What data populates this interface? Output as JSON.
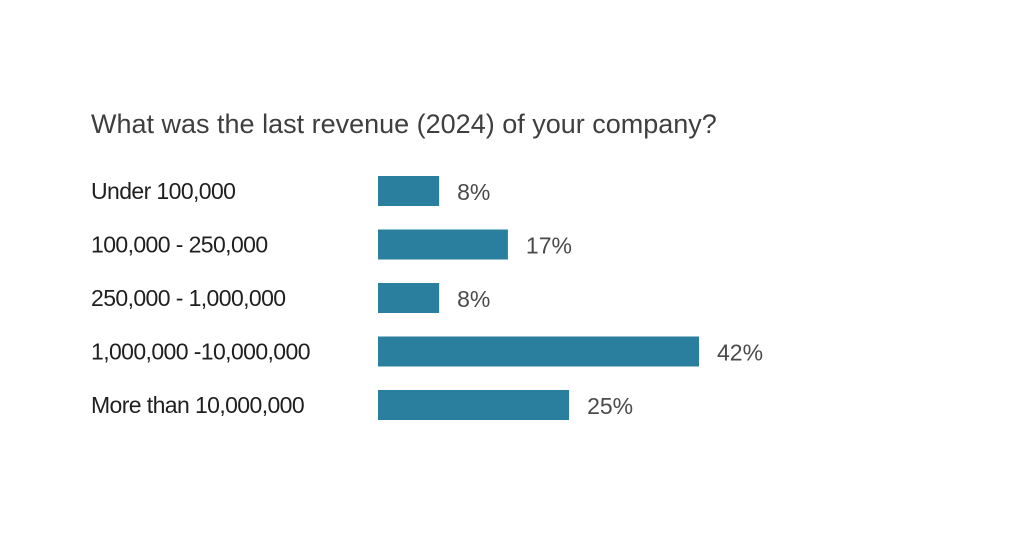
{
  "chart_data": {
    "type": "bar",
    "orientation": "horizontal",
    "title": "What was the last revenue (2024) of your company?",
    "categories": [
      "Under 100,000",
      "100,000 - 250,000",
      "250,000 - 1,000,000",
      "1,000,000 -10,000,000",
      "More than 10,000,000"
    ],
    "values": [
      8,
      17,
      8,
      42,
      25
    ],
    "value_labels": [
      "8%",
      "17%",
      "8%",
      "42%",
      "25%"
    ],
    "unit": "%",
    "xlim": [
      0,
      42
    ],
    "grid": false,
    "legend": "none",
    "colors": {
      "bar": "#2a7f9e",
      "title": "#3f3f3f",
      "category_text": "#1f1f1f",
      "value_text": "#4a4a4a"
    }
  }
}
